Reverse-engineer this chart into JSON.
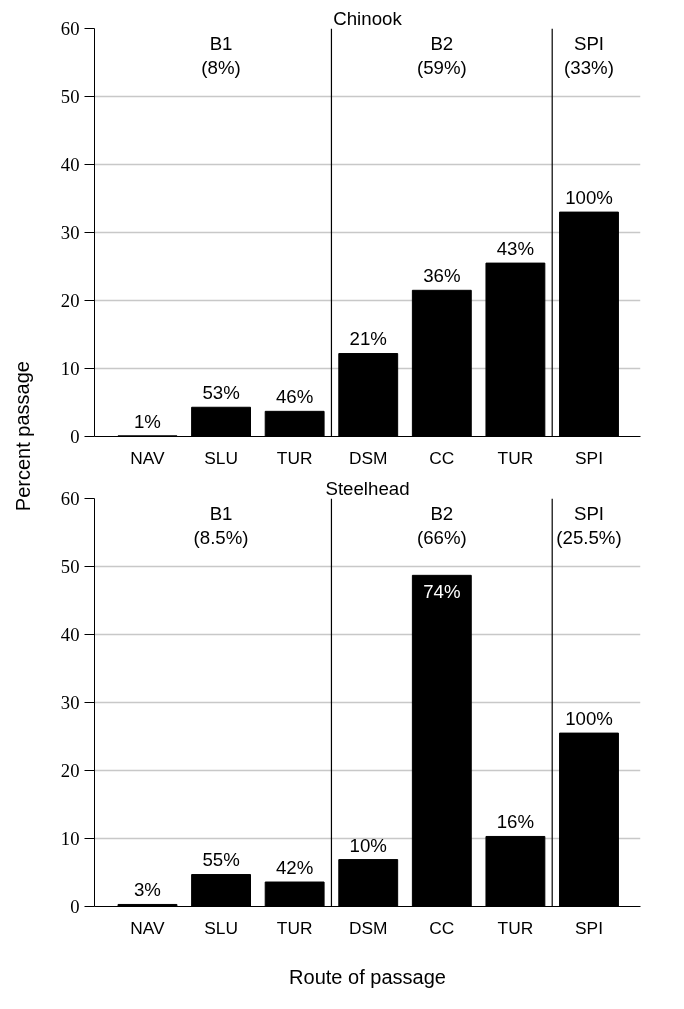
{
  "chart_data": [
    {
      "type": "bar",
      "title": "Chinook",
      "ylabel": "Percent passage",
      "categories": [
        "NAV",
        "SLU",
        "TUR",
        "DSM",
        "CC",
        "TUR",
        "SPI"
      ],
      "series": [
        {
          "color": "#000000",
          "values": [
            0.1,
            4.3,
            3.7,
            12.2,
            21.5,
            25.5,
            33
          ]
        }
      ],
      "ylim": [
        0,
        60
      ],
      "yticks": [
        0,
        10,
        20,
        30,
        40,
        50,
        60
      ],
      "grid": "y",
      "annotations": [
        "B1\n(8%)",
        "B2\n(59%)",
        "SPI\n(33%)",
        "1%",
        "53%",
        "46%",
        "21%",
        "36%",
        "43%",
        "100%"
      ]
    },
    {
      "type": "bar",
      "title": "Steelhead",
      "xlabel": "Route of passage",
      "categories": [
        "NAV",
        "SLU",
        "TUR",
        "DSM",
        "CC",
        "TUR",
        "SPI"
      ],
      "series": [
        {
          "color": "#000000",
          "values": [
            0.3,
            4.7,
            3.6,
            6.9,
            48.7,
            10.3,
            25.5
          ]
        }
      ],
      "ylim": [
        0,
        60
      ],
      "yticks": [
        0,
        10,
        20,
        30,
        40,
        50,
        60
      ],
      "grid": "y",
      "annotations": [
        "B1\n(8.5%)",
        "B2\n(66%)",
        "SPI\n(25.5%)",
        "3%",
        "55%",
        "42%",
        "10%",
        "74%",
        "16%",
        "100%"
      ]
    }
  ]
}
